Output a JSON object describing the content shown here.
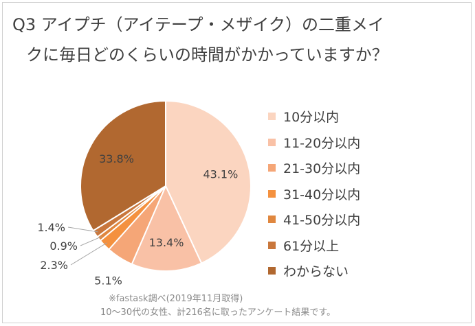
{
  "chart_data": {
    "type": "pie",
    "title_line1": "Q3 アイプチ（アイテープ・メザイク）の二重メイ",
    "title_line2": "クに毎日どのくらいの時間がかかっていますか？",
    "categories": [
      "10分以内",
      "11-20分以内",
      "21-30分以内",
      "31-40分以内",
      "41-50分以内",
      "61分以上",
      "わからない"
    ],
    "values": [
      43.1,
      13.4,
      5.1,
      2.3,
      0.9,
      1.4,
      33.8
    ],
    "labels": [
      "43.1%",
      "13.4%",
      "5.1%",
      "2.3%",
      "0.9%",
      "1.4%",
      "33.8%"
    ],
    "colors": [
      "#fbd5c0",
      "#f9c1a6",
      "#f5a677",
      "#f4913f",
      "#e0873f",
      "#c9773c",
      "#b16830"
    ],
    "legend_position": "right"
  },
  "note": {
    "line1": "※fastask調べ(2019年11月取得)",
    "line2": "10～30代の女性、計216名に取ったアンケート結果です。"
  }
}
